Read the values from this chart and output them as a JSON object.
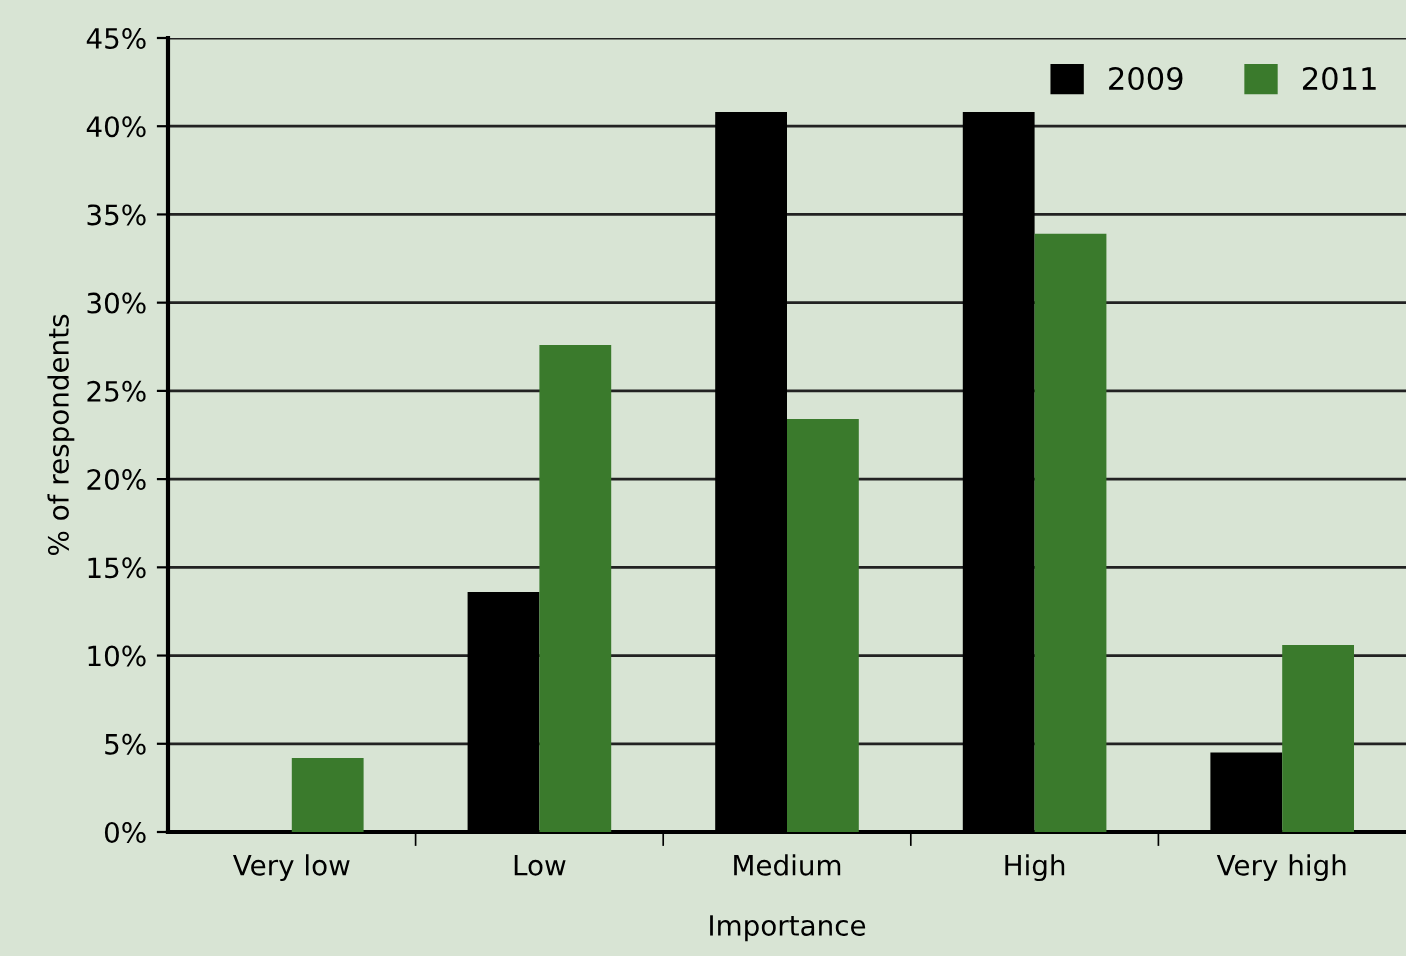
{
  "chart_data": {
    "type": "bar",
    "xlabel": "Importance",
    "ylabel": "% of respondents",
    "categories": [
      "Very low",
      "Low",
      "Medium",
      "High",
      "Very high"
    ],
    "series": [
      {
        "name": "2009",
        "color": "#000000",
        "values": [
          0,
          13.6,
          40.8,
          40.8,
          4.5
        ]
      },
      {
        "name": "2011",
        "color": "#3a7a2c",
        "values": [
          4.2,
          27.6,
          23.4,
          33.9,
          10.6
        ]
      }
    ],
    "ylim": [
      0,
      45
    ],
    "yticks": [
      {
        "value": 0,
        "label": "0%"
      },
      {
        "value": 5,
        "label": "5%"
      },
      {
        "value": 10,
        "label": "10%"
      },
      {
        "value": 15,
        "label": "15%"
      },
      {
        "value": 20,
        "label": "20%"
      },
      {
        "value": 25,
        "label": "25%"
      },
      {
        "value": 30,
        "label": "30%"
      },
      {
        "value": 35,
        "label": "35%"
      },
      {
        "value": 40,
        "label": "40%"
      },
      {
        "value": 45,
        "label": "45%"
      }
    ],
    "grid": "y",
    "legend": "top right"
  }
}
